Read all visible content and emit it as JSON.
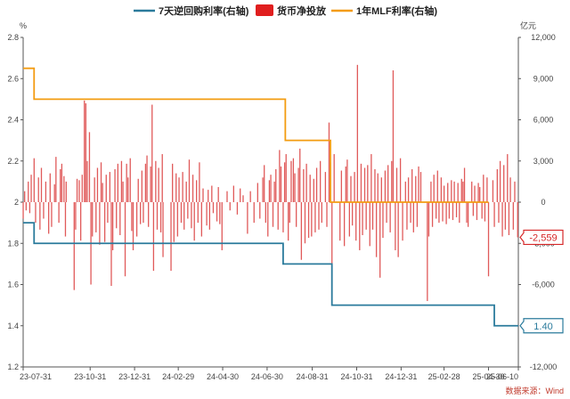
{
  "chart_data": {
    "type": "bar+line",
    "legend": [
      {
        "name": "7天逆回购利率(右轴)",
        "color": "#2b7b9c",
        "kind": "line"
      },
      {
        "name": "货币净投放",
        "color": "#e01e1e",
        "kind": "bar"
      },
      {
        "name": "1年MLF利率(右轴)",
        "color": "#f39c12",
        "kind": "line"
      }
    ],
    "legend_placement": "top-center",
    "left_axis": {
      "unit": "%",
      "min": 1.2,
      "max": 2.8,
      "ticks": [
        "1.2",
        "1.4",
        "1.6",
        "1.8",
        "2",
        "2.2",
        "2.4",
        "2.6",
        "2.8"
      ]
    },
    "right_axis": {
      "unit": "亿元",
      "min": -12000,
      "max": 12000,
      "ticks": [
        "-12,000",
        "-6,000",
        "-3,000",
        "0",
        "3,000",
        "6,000",
        "9,000",
        "12,000"
      ],
      "tick_values": [
        -12000,
        -6000,
        -3000,
        0,
        3000,
        6000,
        9000,
        12000
      ]
    },
    "x_axis": {
      "start": "2023-07-31",
      "end": "2025-06-10",
      "ticks": [
        "23-07-31",
        "23-10-31",
        "23-12-31",
        "24-02-29",
        "24-04-30",
        "24-06-30",
        "24-08-31",
        "24-10-31",
        "24-12-31",
        "25-02-28",
        "25-04-30",
        "25-06-10"
      ],
      "tick_dates": [
        "2023-07-31",
        "2023-10-31",
        "2023-12-31",
        "2024-02-29",
        "2024-04-30",
        "2024-06-30",
        "2024-08-31",
        "2024-10-31",
        "2024-12-31",
        "2025-02-28",
        "2025-04-30",
        "2025-06-10"
      ]
    },
    "series_reverse_repo_7d": {
      "name": "7天逆回购利率(右轴)",
      "steps": [
        {
          "date": "2023-07-31",
          "value": 1.9
        },
        {
          "date": "2023-08-15",
          "value": 1.8
        },
        {
          "date": "2024-07-22",
          "value": 1.7
        },
        {
          "date": "2024-09-27",
          "value": 1.5
        },
        {
          "date": "2025-05-08",
          "value": 1.4
        }
      ],
      "end": "2025-06-10",
      "last_label": "1.40"
    },
    "series_mlf_1y": {
      "name": "1年MLF利率(右轴)",
      "steps": [
        {
          "date": "2023-07-31",
          "value": 2.65
        },
        {
          "date": "2023-08-15",
          "value": 2.5
        },
        {
          "date": "2024-07-25",
          "value": 2.3
        },
        {
          "date": "2024-09-25",
          "value": 2.0
        }
      ],
      "end": "2025-04-30"
    },
    "series_net_injection": {
      "name": "货币净投放",
      "unit": "亿元",
      "points": [
        [
          "2023-07-31",
          -1200
        ],
        [
          "2023-08-02",
          800
        ],
        [
          "2023-08-04",
          -600
        ],
        [
          "2023-08-07",
          1500
        ],
        [
          "2023-08-09",
          -800
        ],
        [
          "2023-08-11",
          2000
        ],
        [
          "2023-08-15",
          3200
        ],
        [
          "2023-08-17",
          -1500
        ],
        [
          "2023-08-21",
          1800
        ],
        [
          "2023-08-23",
          -2000
        ],
        [
          "2023-08-25",
          2500
        ],
        [
          "2023-08-28",
          -1200
        ],
        [
          "2023-08-31",
          1500
        ],
        [
          "2023-09-04",
          -2300
        ],
        [
          "2023-09-06",
          2100
        ],
        [
          "2023-09-08",
          -1800
        ],
        [
          "2023-09-12",
          1300
        ],
        [
          "2023-09-14",
          3300
        ],
        [
          "2023-09-18",
          -1500
        ],
        [
          "2023-09-20",
          2400
        ],
        [
          "2023-09-22",
          2800
        ],
        [
          "2023-09-25",
          1900
        ],
        [
          "2023-09-27",
          -2500
        ],
        [
          "2023-09-28",
          1500
        ],
        [
          "2023-10-09",
          -6400
        ],
        [
          "2023-10-11",
          -2000
        ],
        [
          "2023-10-13",
          1700
        ],
        [
          "2023-10-16",
          1600
        ],
        [
          "2023-10-18",
          -2800
        ],
        [
          "2023-10-20",
          2000
        ],
        [
          "2023-10-23",
          7400
        ],
        [
          "2023-10-25",
          7200
        ],
        [
          "2023-10-27",
          3000
        ],
        [
          "2023-10-30",
          5100
        ],
        [
          "2023-11-01",
          -6000
        ],
        [
          "2023-11-03",
          -2500
        ],
        [
          "2023-11-06",
          1800
        ],
        [
          "2023-11-08",
          -2200
        ],
        [
          "2023-11-10",
          2500
        ],
        [
          "2023-11-13",
          -3100
        ],
        [
          "2023-11-15",
          2900
        ],
        [
          "2023-11-17",
          1400
        ],
        [
          "2023-11-20",
          -2900
        ],
        [
          "2023-11-22",
          2000
        ],
        [
          "2023-11-24",
          -1500
        ],
        [
          "2023-11-27",
          2200
        ],
        [
          "2023-11-29",
          -6100
        ],
        [
          "2023-12-01",
          -3500
        ],
        [
          "2023-12-04",
          2400
        ],
        [
          "2023-12-06",
          -1900
        ],
        [
          "2023-12-08",
          2800
        ],
        [
          "2023-12-11",
          -2400
        ],
        [
          "2023-12-13",
          3000
        ],
        [
          "2023-12-15",
          1500
        ],
        [
          "2023-12-18",
          -5400
        ],
        [
          "2023-12-20",
          2800
        ],
        [
          "2023-12-22",
          1800
        ],
        [
          "2023-12-25",
          3200
        ],
        [
          "2023-12-27",
          -2100
        ],
        [
          "2023-12-29",
          -3500
        ],
        [
          "2024-01-03",
          -2500
        ],
        [
          "2024-01-05",
          1700
        ],
        [
          "2024-01-08",
          -1600
        ],
        [
          "2024-01-10",
          2300
        ],
        [
          "2024-01-12",
          -1500
        ],
        [
          "2024-01-15",
          2800
        ],
        [
          "2024-01-17",
          3400
        ],
        [
          "2024-01-19",
          -1800
        ],
        [
          "2024-01-22",
          2600
        ],
        [
          "2024-01-24",
          7100
        ],
        [
          "2024-01-26",
          -5000
        ],
        [
          "2024-01-29",
          3000
        ],
        [
          "2024-01-31",
          -2000
        ],
        [
          "2024-02-02",
          2500
        ],
        [
          "2024-02-05",
          -2200
        ],
        [
          "2024-02-07",
          3500
        ],
        [
          "2024-02-08",
          -4000
        ],
        [
          "2024-02-19",
          -5000
        ],
        [
          "2024-02-21",
          2800
        ],
        [
          "2024-02-23",
          -2900
        ],
        [
          "2024-02-26",
          2100
        ],
        [
          "2024-02-28",
          -2500
        ],
        [
          "2024-03-01",
          1800
        ],
        [
          "2024-03-04",
          -1500
        ],
        [
          "2024-03-06",
          2200
        ],
        [
          "2024-03-08",
          -2000
        ],
        [
          "2024-03-11",
          1500
        ],
        [
          "2024-03-13",
          -1200
        ],
        [
          "2024-03-15",
          3100
        ],
        [
          "2024-03-18",
          -1900
        ],
        [
          "2024-03-20",
          2000
        ],
        [
          "2024-03-22",
          -2800
        ],
        [
          "2024-03-25",
          1600
        ],
        [
          "2024-03-27",
          -1500
        ],
        [
          "2024-03-29",
          2900
        ],
        [
          "2024-04-01",
          -2500
        ],
        [
          "2024-04-03",
          1000
        ],
        [
          "2024-04-08",
          -1700
        ],
        [
          "2024-04-10",
          900
        ],
        [
          "2024-04-12",
          -2000
        ],
        [
          "2024-04-15",
          1200
        ],
        [
          "2024-04-17",
          -800
        ],
        [
          "2024-04-22",
          -1400
        ],
        [
          "2024-04-24",
          1100
        ],
        [
          "2024-04-26",
          -1600
        ],
        [
          "2024-04-29",
          -3500
        ],
        [
          "2024-05-06",
          800
        ],
        [
          "2024-05-10",
          -600
        ],
        [
          "2024-05-15",
          1200
        ],
        [
          "2024-05-20",
          -900
        ],
        [
          "2024-05-24",
          1000
        ],
        [
          "2024-05-28",
          500
        ],
        [
          "2024-06-03",
          -2300
        ],
        [
          "2024-06-07",
          800
        ],
        [
          "2024-06-12",
          -1500
        ],
        [
          "2024-06-17",
          1400
        ],
        [
          "2024-06-20",
          -1200
        ],
        [
          "2024-06-24",
          1800
        ],
        [
          "2024-06-26",
          2700
        ],
        [
          "2024-06-28",
          -1500
        ],
        [
          "2024-07-01",
          -2500
        ],
        [
          "2024-07-03",
          1600
        ],
        [
          "2024-07-05",
          2000
        ],
        [
          "2024-07-08",
          -1800
        ],
        [
          "2024-07-10",
          1500
        ],
        [
          "2024-07-12",
          2400
        ],
        [
          "2024-07-15",
          -2000
        ],
        [
          "2024-07-17",
          3800
        ],
        [
          "2024-07-19",
          2600
        ],
        [
          "2024-07-22",
          -2200
        ],
        [
          "2024-07-24",
          2900
        ],
        [
          "2024-07-26",
          3500
        ],
        [
          "2024-07-29",
          -2800
        ],
        [
          "2024-07-31",
          -1500
        ],
        [
          "2024-08-02",
          3000
        ],
        [
          "2024-08-05",
          3200
        ],
        [
          "2024-08-07",
          2100
        ],
        [
          "2024-08-09",
          -1800
        ],
        [
          "2024-08-12",
          2500
        ],
        [
          "2024-08-14",
          3900
        ],
        [
          "2024-08-16",
          -4200
        ],
        [
          "2024-08-19",
          2400
        ],
        [
          "2024-08-21",
          -3000
        ],
        [
          "2024-08-23",
          2800
        ],
        [
          "2024-08-26",
          -2600
        ],
        [
          "2024-08-28",
          2000
        ],
        [
          "2024-08-30",
          -2500
        ],
        [
          "2024-09-02",
          1700
        ],
        [
          "2024-09-04",
          -2200
        ],
        [
          "2024-09-06",
          2500
        ],
        [
          "2024-09-09",
          -2000
        ],
        [
          "2024-09-11",
          3000
        ],
        [
          "2024-09-13",
          -1500
        ],
        [
          "2024-09-18",
          2200
        ],
        [
          "2024-09-20",
          -1800
        ],
        [
          "2024-09-23",
          5800
        ],
        [
          "2024-09-25",
          2900
        ],
        [
          "2024-09-27",
          -7300
        ],
        [
          "2024-09-30",
          3500
        ],
        [
          "2024-10-08",
          -2800
        ],
        [
          "2024-10-10",
          2300
        ],
        [
          "2024-10-14",
          -3200
        ],
        [
          "2024-10-16",
          2600
        ],
        [
          "2024-10-18",
          3100
        ],
        [
          "2024-10-21",
          -2500
        ],
        [
          "2024-10-23",
          1900
        ],
        [
          "2024-10-25",
          -1700
        ],
        [
          "2024-10-28",
          2200
        ],
        [
          "2024-10-30",
          -2800
        ],
        [
          "2024-11-01",
          10000
        ],
        [
          "2024-11-04",
          -3500
        ],
        [
          "2024-11-06",
          2800
        ],
        [
          "2024-11-08",
          -2400
        ],
        [
          "2024-11-11",
          2500
        ],
        [
          "2024-11-13",
          -2000
        ],
        [
          "2024-11-15",
          2700
        ],
        [
          "2024-11-18",
          -3200
        ],
        [
          "2024-11-20",
          3500
        ],
        [
          "2024-11-22",
          -2000
        ],
        [
          "2024-11-25",
          2400
        ],
        [
          "2024-11-27",
          -4000
        ],
        [
          "2024-11-29",
          2100
        ],
        [
          "2024-12-02",
          -5500
        ],
        [
          "2024-12-04",
          1800
        ],
        [
          "2024-12-06",
          -2600
        ],
        [
          "2024-12-09",
          2300
        ],
        [
          "2024-12-11",
          -1500
        ],
        [
          "2024-12-13",
          2700
        ],
        [
          "2024-12-16",
          -2200
        ],
        [
          "2024-12-18",
          3000
        ],
        [
          "2024-12-20",
          9600
        ],
        [
          "2024-12-23",
          -3500
        ],
        [
          "2024-12-25",
          2500
        ],
        [
          "2024-12-27",
          -4000
        ],
        [
          "2024-12-30",
          3200
        ],
        [
          "2025-01-02",
          -2800
        ],
        [
          "2025-01-06",
          1500
        ],
        [
          "2025-01-08",
          -2000
        ],
        [
          "2025-01-10",
          1800
        ],
        [
          "2025-01-13",
          -1500
        ],
        [
          "2025-01-15",
          2400
        ],
        [
          "2025-01-17",
          -2200
        ],
        [
          "2025-01-20",
          1900
        ],
        [
          "2025-01-22",
          -1800
        ],
        [
          "2025-01-24",
          2600
        ],
        [
          "2025-01-27",
          2200
        ],
        [
          "2025-02-05",
          -7200
        ],
        [
          "2025-02-07",
          -2500
        ],
        [
          "2025-02-10",
          1500
        ],
        [
          "2025-02-12",
          -1800
        ],
        [
          "2025-02-14",
          2000
        ],
        [
          "2025-02-17",
          -1200
        ],
        [
          "2025-02-19",
          2300
        ],
        [
          "2025-02-21",
          -1500
        ],
        [
          "2025-02-24",
          1800
        ],
        [
          "2025-02-26",
          -1400
        ],
        [
          "2025-02-28",
          1200
        ],
        [
          "2025-03-03",
          -1600
        ],
        [
          "2025-03-05",
          1400
        ],
        [
          "2025-03-07",
          -1200
        ],
        [
          "2025-03-10",
          1600
        ],
        [
          "2025-03-12",
          -1300
        ],
        [
          "2025-03-14",
          1500
        ],
        [
          "2025-03-17",
          -1100
        ],
        [
          "2025-03-19",
          1400
        ],
        [
          "2025-03-21",
          -1500
        ],
        [
          "2025-03-24",
          1700
        ],
        [
          "2025-03-26",
          1500
        ],
        [
          "2025-03-28",
          2500
        ],
        [
          "2025-03-31",
          -1500
        ],
        [
          "2025-04-02",
          -1800
        ],
        [
          "2025-04-07",
          1500
        ],
        [
          "2025-04-09",
          -1000
        ],
        [
          "2025-04-11",
          1200
        ],
        [
          "2025-04-14",
          -1300
        ],
        [
          "2025-04-16",
          1400
        ],
        [
          "2025-04-18",
          1100
        ],
        [
          "2025-04-21",
          -1200
        ],
        [
          "2025-04-23",
          2000
        ],
        [
          "2025-04-25",
          -1400
        ],
        [
          "2025-04-28",
          1800
        ],
        [
          "2025-04-30",
          -5400
        ],
        [
          "2025-05-06",
          1600
        ],
        [
          "2025-05-08",
          -1800
        ],
        [
          "2025-05-12",
          2400
        ],
        [
          "2025-05-14",
          -1500
        ],
        [
          "2025-05-16",
          3000
        ],
        [
          "2025-05-19",
          -2500
        ],
        [
          "2025-05-21",
          2700
        ],
        [
          "2025-05-23",
          -2000
        ],
        [
          "2025-05-26",
          3500
        ],
        [
          "2025-05-28",
          -2400
        ],
        [
          "2025-05-30",
          1800
        ],
        [
          "2025-06-03",
          -2000
        ],
        [
          "2025-06-05",
          1500
        ],
        [
          "2025-06-09",
          -2559
        ]
      ],
      "last_label": "-2,559"
    },
    "grid": false,
    "source": "数据来源：Wind"
  }
}
